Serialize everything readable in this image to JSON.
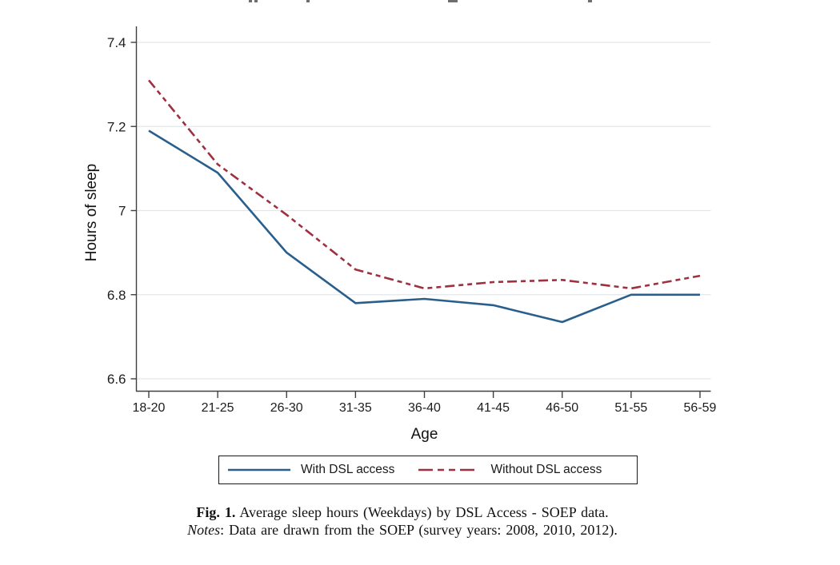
{
  "chart_data": {
    "type": "line",
    "title": "",
    "categories": [
      "18-20",
      "21-25",
      "26-30",
      "31-35",
      "36-40",
      "41-45",
      "46-50",
      "51-55",
      "56-59"
    ],
    "xlabel": "Age",
    "ylabel": "Hours of sleep",
    "ylim": [
      6.6,
      7.4
    ],
    "yticks": [
      7.4,
      7.2,
      7.0,
      6.8,
      6.6
    ],
    "ytick_labels": [
      "7.4",
      "7.2",
      "7",
      "6.8",
      "6.6"
    ],
    "grid": true,
    "legend_position": "bottom-center",
    "series": [
      {
        "name": "With DSL access",
        "color": "#2a5f8d",
        "dash": "solid",
        "values": [
          7.19,
          7.09,
          6.9,
          6.78,
          6.79,
          6.775,
          6.735,
          6.8,
          6.8
        ]
      },
      {
        "name": "Without DSL access",
        "color": "#9e3040",
        "dash": "long-short-short",
        "values": [
          7.31,
          7.11,
          6.99,
          6.86,
          6.815,
          6.83,
          6.835,
          6.815,
          6.845
        ]
      }
    ],
    "colors": {
      "axis": "#404040",
      "gridline": "#e2e7ea",
      "tick_text": "#1d1d1d"
    }
  },
  "caption": {
    "fig_label": "Fig. 1.",
    "fig_text": "Average sleep hours (Weekdays) by DSL Access - SOEP data.",
    "notes_label": "Notes",
    "notes_text": ": Data are drawn from the SOEP (survey years: 2008, 2010, 2012)."
  }
}
